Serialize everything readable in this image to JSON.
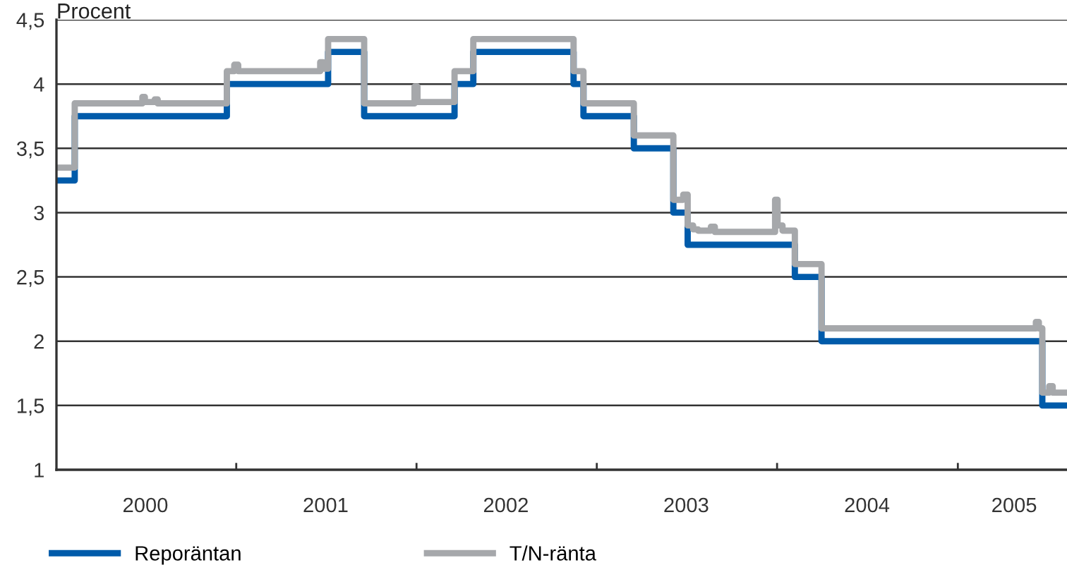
{
  "chart_data": {
    "type": "step",
    "title": "Procent",
    "xlim": [
      "2000-01-03",
      "2005-08-10"
    ],
    "xticks": [
      {
        "value": "2000-07-01",
        "label": "2000"
      },
      {
        "value": "2001-01-01",
        "label": null
      },
      {
        "value": "2001-07-01",
        "label": "2001"
      },
      {
        "value": "2002-01-01",
        "label": null
      },
      {
        "value": "2002-07-01",
        "label": "2002"
      },
      {
        "value": "2003-01-01",
        "label": null
      },
      {
        "value": "2003-07-01",
        "label": "2003"
      },
      {
        "value": "2004-01-01",
        "label": null
      },
      {
        "value": "2004-07-01",
        "label": "2004"
      },
      {
        "value": "2005-01-01",
        "label": null
      },
      {
        "value": "2005-04-25",
        "label": "2005"
      }
    ],
    "ylim": [
      1,
      4.5
    ],
    "yticks": [
      1,
      {
        "value": 1.5,
        "label": "1,5"
      },
      2,
      {
        "value": 2.5,
        "label": "2,5"
      },
      3,
      {
        "value": 3.5,
        "label": "3,5"
      },
      4,
      {
        "value": 4.5,
        "label": "4,5"
      }
    ],
    "grid": "y",
    "legend": "bottom",
    "line_style": "solid",
    "series": [
      {
        "name": "Reporäntan",
        "color": "#005baa",
        "x": [
          "2000-01-03",
          "2000-02-09",
          "2000-12-13",
          "2001-07-06",
          "2001-09-17",
          "2002-03-19",
          "2002-04-26",
          "2002-11-15",
          "2002-12-05",
          "2003-03-17",
          "2003-06-05",
          "2003-07-04",
          "2004-02-06",
          "2004-03-31",
          "2005-06-21",
          "2005-08-10"
        ],
        "values": [
          3.25,
          3.75,
          4.0,
          4.25,
          3.75,
          4.0,
          4.25,
          4.0,
          3.75,
          3.5,
          3.0,
          2.75,
          2.5,
          2.0,
          1.5,
          1.5
        ]
      },
      {
        "name": "T/N-ränta",
        "color": "#a6a8ab",
        "x": [
          "2000-01-03",
          "2000-02-09",
          "2000-06-25",
          "2000-06-30",
          "2000-07-20",
          "2000-07-26",
          "2000-12-13",
          "2000-12-28",
          "2001-01-05",
          "2001-06-20",
          "2001-06-26",
          "2001-07-06",
          "2001-09-17",
          "2001-12-28",
          "2002-01-03",
          "2002-03-19",
          "2002-04-26",
          "2002-11-15",
          "2002-12-05",
          "2003-03-17",
          "2003-06-05",
          "2003-06-25",
          "2003-07-04",
          "2003-07-15",
          "2003-07-25",
          "2003-08-20",
          "2003-08-28",
          "2003-12-28",
          "2004-01-02",
          "2004-01-12",
          "2004-02-06",
          "2004-03-31",
          "2005-06-08",
          "2005-06-14",
          "2005-06-21",
          "2005-07-05",
          "2005-07-12",
          "2005-08-10"
        ],
        "values": [
          3.35,
          3.85,
          3.9,
          3.86,
          3.88,
          3.85,
          4.1,
          4.15,
          4.1,
          4.17,
          4.12,
          4.35,
          3.85,
          3.98,
          3.86,
          4.1,
          4.35,
          4.1,
          3.85,
          3.6,
          3.1,
          3.14,
          2.9,
          2.87,
          2.86,
          2.89,
          2.85,
          3.1,
          2.9,
          2.86,
          2.6,
          2.1,
          2.15,
          2.1,
          1.6,
          1.65,
          1.6,
          1.6
        ]
      }
    ]
  }
}
